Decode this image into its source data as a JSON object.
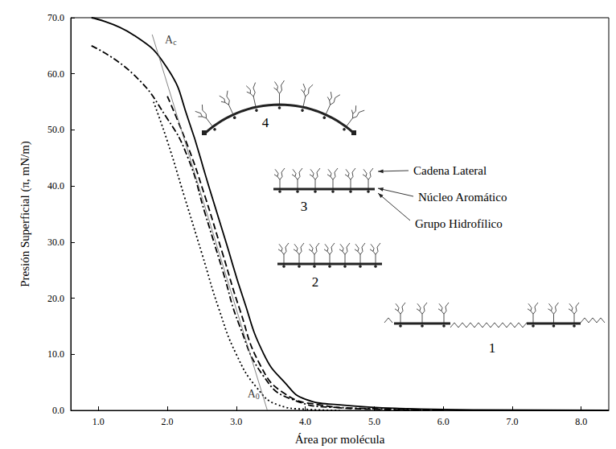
{
  "chart_data": {
    "type": "line",
    "x_label": "Área por molécula",
    "y_label": "Presión Superficial (π, mN/m)",
    "xlim": [
      0.6,
      8.4
    ],
    "xticks": [
      {
        "value": 1,
        "label": "1.0"
      },
      {
        "value": 2,
        "label": "2.0"
      },
      {
        "value": 3,
        "label": "3.0"
      },
      {
        "value": 4,
        "label": "4.0"
      },
      {
        "value": 5,
        "label": "5.0"
      },
      {
        "value": 6,
        "label": "6.0"
      },
      {
        "value": 7,
        "label": "7.0"
      },
      {
        "value": 8,
        "label": "8.0"
      }
    ],
    "ylim": [
      0,
      70
    ],
    "yticks": [
      {
        "value": 0,
        "label": "0.0"
      },
      {
        "value": 10,
        "label": "10.0"
      },
      {
        "value": 20,
        "label": "20.0"
      },
      {
        "value": 30,
        "label": "30.0"
      },
      {
        "value": 40,
        "label": "40.0"
      },
      {
        "value": 50,
        "label": "50.0"
      },
      {
        "value": 60,
        "label": "60.0"
      },
      {
        "value": 70,
        "label": "70.0"
      }
    ],
    "grid": false,
    "series": [
      {
        "color": "#000000",
        "line_style": "solid",
        "x": [
          0.9,
          1.5,
          2.0,
          2.3,
          2.6,
          2.85,
          3.1,
          3.4,
          3.7,
          4.0,
          4.5,
          5.5,
          6.5,
          8.4
        ],
        "values": [
          70,
          67,
          61,
          52,
          40,
          30,
          20,
          10,
          5,
          2,
          1,
          0.3,
          0.1,
          0
        ]
      },
      {
        "color": "#000000",
        "line_style": "dashed",
        "x": [
          2.0,
          2.3,
          2.55,
          2.8,
          3.05,
          3.35,
          3.7,
          4.2,
          5.0,
          6.0
        ],
        "values": [
          56,
          47,
          38,
          28,
          18,
          8,
          3,
          1,
          0.2,
          0
        ]
      },
      {
        "color": "#000000",
        "line_style": "dashdot",
        "x": [
          0.9,
          1.5,
          2.0,
          2.3,
          2.55,
          2.8,
          3.05,
          3.4,
          3.8,
          4.5,
          6.0
        ],
        "values": [
          65,
          60,
          52,
          45,
          35,
          25,
          15,
          6,
          2,
          0.5,
          0.1
        ]
      },
      {
        "color": "#000000",
        "line_style": "dotted",
        "x": [
          1.8,
          2.0,
          2.25,
          2.5,
          2.75,
          3.0,
          3.3,
          3.6,
          4.0,
          4.5
        ],
        "values": [
          55,
          48,
          38,
          28,
          18,
          10,
          4,
          1,
          0.2,
          0
        ]
      },
      {
        "color": "#666666",
        "line_style": "thin",
        "x": [
          1.78,
          3.45
        ],
        "values": [
          67,
          0
        ]
      }
    ],
    "annotations": [
      {
        "text": "A",
        "subscript": "c",
        "x": 2.05,
        "y": 66
      },
      {
        "text": "A",
        "subscript": "0",
        "x": 3.25,
        "y": 3
      }
    ],
    "diagram_labels": {
      "numbers": [
        "1",
        "2",
        "3",
        "4"
      ],
      "parts": [
        "Cadena Lateral",
        "Núcleo Aromático",
        "Grupo Hidrofílico"
      ]
    }
  }
}
